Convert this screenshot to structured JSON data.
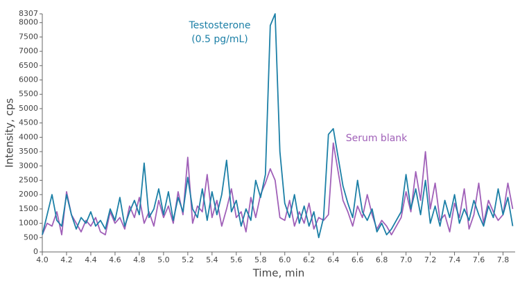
{
  "chart_data": {
    "type": "line",
    "x_label": "Time, min",
    "y_label": "Intensity, cps",
    "annotation": "(0.5 pg/mL)",
    "x": [
      4,
      4.04,
      4.08,
      4.12,
      4.16,
      4.2,
      4.24,
      4.28,
      4.32,
      4.36,
      4.4,
      4.44,
      4.48,
      4.52,
      4.56,
      4.6,
      4.64,
      4.68,
      4.72,
      4.76,
      4.8,
      4.84,
      4.88,
      4.92,
      4.96,
      5,
      5.04,
      5.08,
      5.12,
      5.16,
      5.2,
      5.24,
      5.28,
      5.32,
      5.36,
      5.4,
      5.44,
      5.48,
      5.52,
      5.56,
      5.6,
      5.64,
      5.68,
      5.72,
      5.76,
      5.8,
      5.84,
      5.88,
      5.92,
      5.96,
      6,
      6.04,
      6.08,
      6.12,
      6.16,
      6.2,
      6.24,
      6.28,
      6.32,
      6.36,
      6.4,
      6.44,
      6.48,
      6.52,
      6.56,
      6.6,
      6.64,
      6.68,
      6.72,
      6.76,
      6.8,
      6.84,
      6.88,
      6.92,
      6.96,
      7,
      7.04,
      7.08,
      7.12,
      7.16,
      7.2,
      7.24,
      7.28,
      7.32,
      7.36,
      7.4,
      7.44,
      7.48,
      7.52,
      7.56,
      7.6,
      7.64,
      7.68,
      7.72,
      7.76,
      7.8,
      7.84,
      7.88
    ],
    "series": [
      {
        "name": "Serum blank",
        "color": "#a060b8",
        "values": [
          600,
          1000,
          900,
          1400,
          600,
          2100,
          1300,
          1000,
          700,
          1100,
          900,
          1200,
          700,
          600,
          1400,
          1000,
          1200,
          800,
          1600,
          1200,
          1900,
          1000,
          1400,
          900,
          1800,
          1200,
          1600,
          1000,
          2100,
          1300,
          3300,
          1000,
          1600,
          1400,
          2700,
          1200,
          1800,
          900,
          1500,
          2200,
          1200,
          1400,
          700,
          1900,
          1200,
          2000,
          2400,
          2900,
          2500,
          1200,
          1100,
          1800,
          900,
          1400,
          1000,
          1700,
          800,
          1200,
          1100,
          1300,
          3800,
          2800,
          1800,
          1400,
          900,
          1600,
          1200,
          2000,
          1300,
          800,
          1100,
          900,
          600,
          900,
          1200,
          2100,
          1400,
          2800,
          1800,
          3500,
          1500,
          2400,
          1100,
          1300,
          700,
          1700,
          1200,
          2200,
          800,
          1300,
          2400,
          1000,
          1800,
          1400,
          1100,
          1300,
          2400,
          1500
        ]
      },
      {
        "name": "Testosterone",
        "color": "#1b7fa6",
        "values": [
          600,
          1300,
          2000,
          1100,
          900,
          2000,
          1300,
          800,
          1200,
          1000,
          1400,
          900,
          1100,
          800,
          1500,
          1100,
          1900,
          900,
          1400,
          1800,
          1300,
          3100,
          1200,
          1500,
          2200,
          1300,
          2100,
          1100,
          1900,
          1400,
          2600,
          1500,
          1200,
          2200,
          1100,
          2100,
          1300,
          2000,
          3200,
          1400,
          1800,
          900,
          1500,
          1100,
          2500,
          1900,
          2700,
          7900,
          8307,
          3500,
          1700,
          1200,
          2000,
          1000,
          1600,
          900,
          1400,
          500,
          1200,
          4100,
          4300,
          3300,
          2300,
          1700,
          1200,
          2500,
          1400,
          1100,
          1500,
          700,
          1000,
          600,
          800,
          1100,
          1400,
          2700,
          1500,
          2200,
          1300,
          2500,
          1000,
          1600,
          900,
          1800,
          1200,
          2000,
          1000,
          1500,
          1100,
          1800,
          1300,
          900,
          1600,
          1200,
          2200,
          1300,
          1900,
          900
        ]
      }
    ],
    "xlim": [
      4,
      7.9
    ],
    "xticks": [
      {
        "value": 4,
        "label": "4.0"
      },
      4.2,
      4.4,
      4.6,
      4.8,
      {
        "value": 5,
        "label": "5.0"
      },
      5.2,
      5.4,
      5.6,
      5.8,
      {
        "value": 6,
        "label": "6.0"
      },
      6.2,
      6.4,
      6.6,
      6.8,
      {
        "value": 7,
        "label": "7.0"
      },
      7.2,
      7.4,
      7.6,
      7.8
    ],
    "ylim": [
      0,
      8307
    ],
    "yticks": [
      0,
      500,
      1000,
      1500,
      2000,
      2500,
      3000,
      3500,
      4000,
      4500,
      5000,
      5500,
      6000,
      6500,
      7000,
      7500,
      8000,
      8307
    ]
  }
}
